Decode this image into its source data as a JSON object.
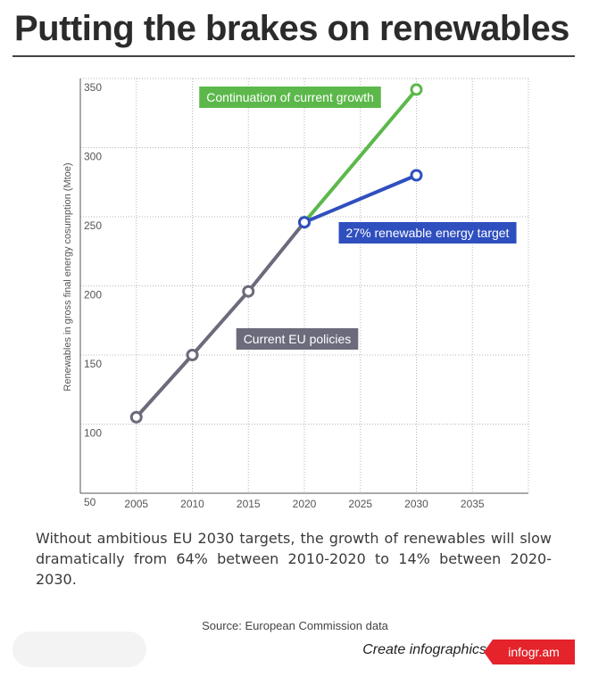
{
  "title": "Putting the brakes on renewables",
  "description": "Without ambitious EU 2030 targets, the growth of renewables will slow dramatically from 64% between 2010-2020 to 14% between 2020-2030.",
  "source": "Source: European Commission data",
  "footer": {
    "create_label": "Create infographics",
    "badge_label": "infogr.am"
  },
  "chart_data": {
    "type": "line",
    "ylabel": "Renewables in gross final energy cosumption (Mtoe)",
    "xlim": [
      2000,
      2040
    ],
    "ylim": [
      50,
      350
    ],
    "x_ticks": [
      "2005",
      "2010",
      "2015",
      "2020",
      "2025",
      "2030",
      "2035"
    ],
    "y_ticks": [
      "350",
      "300",
      "250",
      "200",
      "150",
      "100",
      "50"
    ],
    "grid": true,
    "series": [
      {
        "name": "Current EU policies",
        "color": "#6b6b7b",
        "x": [
          2005,
          2010,
          2015,
          2020
        ],
        "y": [
          105,
          150,
          196,
          246
        ]
      },
      {
        "name": "Continuation of current growth",
        "color": "#5cb84b",
        "x": [
          2020,
          2030
        ],
        "y": [
          246,
          342
        ]
      },
      {
        "name": "27% renewable energy target",
        "color": "#2f4fbf",
        "x": [
          2020,
          2030
        ],
        "y": [
          246,
          280
        ]
      }
    ]
  }
}
